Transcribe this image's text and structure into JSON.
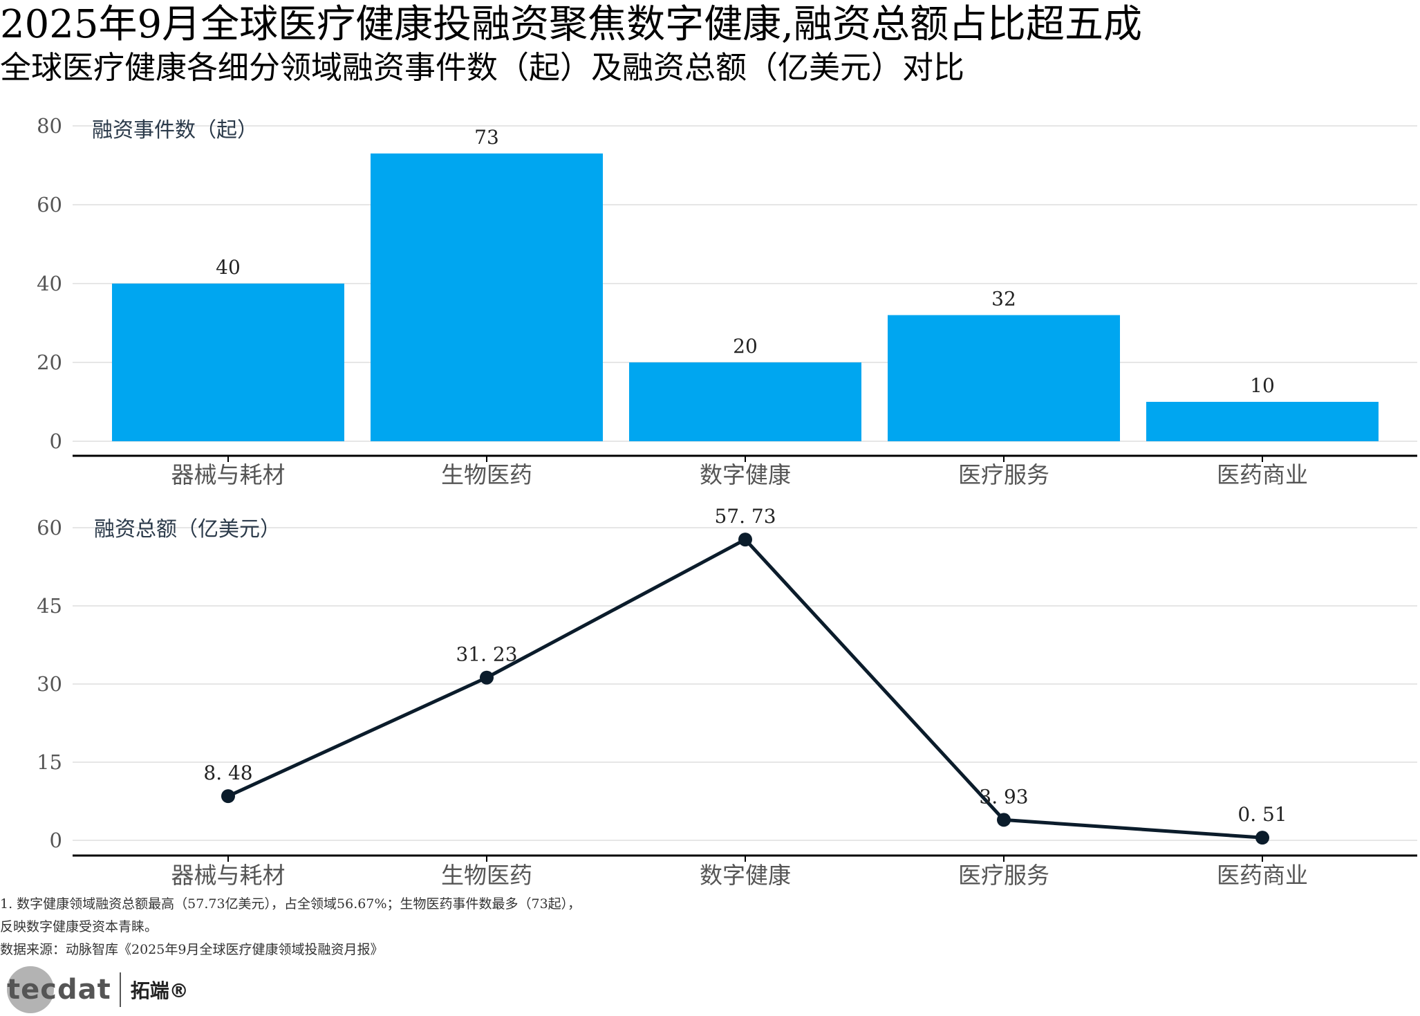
{
  "title": "2025年9月全球医疗健康投融资聚焦数字健康,融资总额占比超五成",
  "subtitle": "全球医疗健康各细分领域融资事件数（起）及融资总额（亿美元）对比",
  "colors": {
    "bar": "#00a6f0",
    "line": "#0b1c2b",
    "grid": "#e6e6e6",
    "axis": "#000000",
    "tick_label": "#555555",
    "data_label": "#222222"
  },
  "chart_data": [
    {
      "type": "bar",
      "ylabel": "融资事件数（起）",
      "categories": [
        "器械与耗材",
        "生物医药",
        "数字健康",
        "医疗服务",
        "医药商业"
      ],
      "values": [
        40,
        73,
        20,
        32,
        10
      ],
      "value_labels": [
        "40",
        "73",
        "20",
        "32",
        "10"
      ],
      "ylim": [
        0,
        80
      ],
      "yticks": [
        0,
        20,
        40,
        60,
        80
      ],
      "grid": true,
      "legend": "none"
    },
    {
      "type": "line",
      "ylabel": "融资总额（亿美元）",
      "categories": [
        "器械与耗材",
        "生物医药",
        "数字健康",
        "医疗服务",
        "医药商业"
      ],
      "values": [
        8.48,
        31.23,
        57.73,
        3.93,
        0.51
      ],
      "value_labels": [
        "8. 48",
        "31. 23",
        "57. 73",
        "3. 93",
        "0. 51"
      ],
      "ylim": [
        0,
        60
      ],
      "yticks": [
        0,
        15,
        30,
        45,
        60
      ],
      "grid": true,
      "legend": "none"
    }
  ],
  "notes": [
    "1. 数字健康领域融资总额最高（57.73亿美元），占全领域56.67%；生物医药事件数最多（73起），",
    "反映数字健康受资本青睐。",
    "数据来源：动脉智库《2025年9月全球医疗健康领域投融资月报》"
  ],
  "logo": {
    "text": "tecdat",
    "cn": "拓端®"
  }
}
